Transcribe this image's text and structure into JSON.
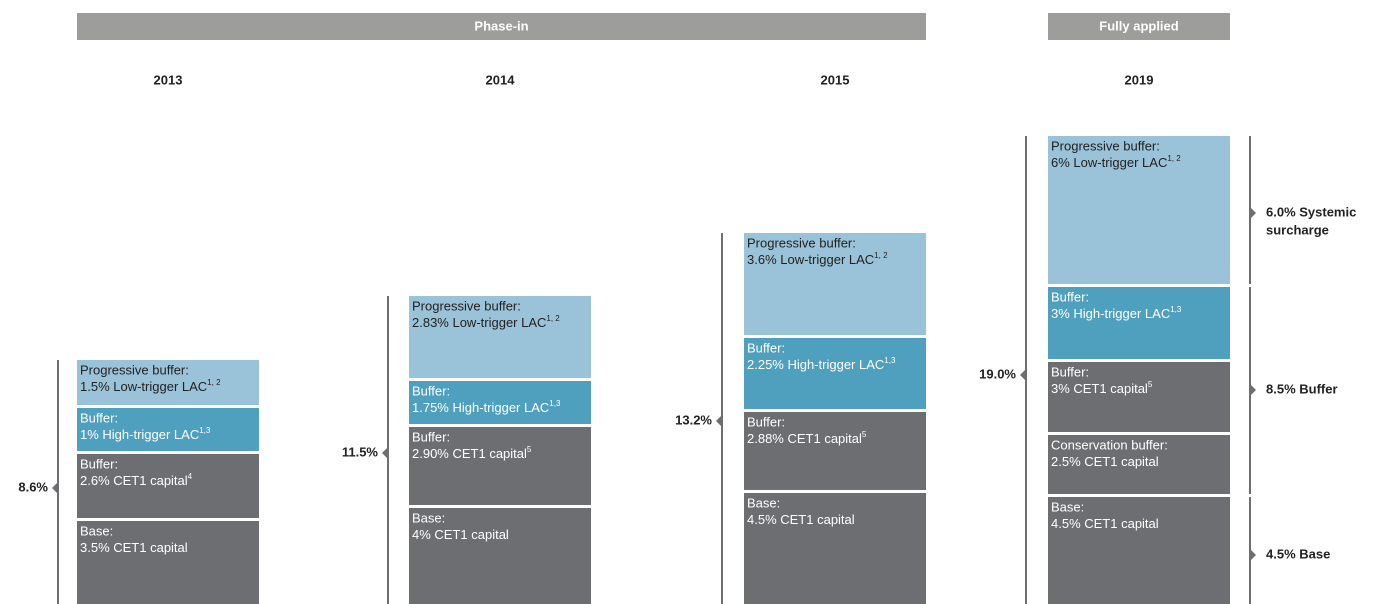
{
  "headers": [
    {
      "label": "Phase-in"
    },
    {
      "label": "Fully applied"
    }
  ],
  "columns": [
    {
      "year": "2013",
      "total": "8.6%",
      "blocks": [
        {
          "title": "Progressive buffer:",
          "text": "1.5% Low-trigger LAC",
          "note": "1, 2"
        },
        {
          "title": "Buffer:",
          "text": "1% High-trigger LAC",
          "note": "1,3"
        },
        {
          "title": "Buffer:",
          "text": "2.6% CET1 capital",
          "note": "4"
        },
        {
          "title": "Base:",
          "text": "3.5% CET1 capital"
        }
      ]
    },
    {
      "year": "2014",
      "total": "11.5%",
      "blocks": [
        {
          "title": "Progressive buffer:",
          "text": "2.83% Low-trigger LAC",
          "note": "1, 2"
        },
        {
          "title": "Buffer:",
          "text": "1.75% High-trigger LAC",
          "note": "1,3"
        },
        {
          "title": "Buffer:",
          "text": "2.90% CET1 capital",
          "note": "5"
        },
        {
          "title": "Base:",
          "text": "4% CET1 capital"
        }
      ]
    },
    {
      "year": "2015",
      "total": "13.2%",
      "blocks": [
        {
          "title": "Progressive buffer:",
          "text": "3.6% Low-trigger LAC",
          "note": "1, 2"
        },
        {
          "title": "Buffer:",
          "text": "2.25% High-trigger LAC",
          "note": "1,3"
        },
        {
          "title": "Buffer:",
          "text": "2.88% CET1 capital",
          "note": "5"
        },
        {
          "title": "Base:",
          "text": "4.5% CET1 capital"
        }
      ]
    },
    {
      "year": "2019",
      "total": "19.0%",
      "blocks": [
        {
          "title": "Progressive buffer:",
          "text": "6% Low-trigger LAC",
          "note": "1, 2"
        },
        {
          "title": "Buffer:",
          "text": "3% High-trigger LAC",
          "note": "1,3"
        },
        {
          "title": "Buffer:",
          "text": "3% CET1 capital",
          "note": "5"
        },
        {
          "title": "Conservation buffer:",
          "text": "2.5% CET1 capital"
        },
        {
          "title": "Base:",
          "text": "4.5% CET1 capital"
        }
      ]
    }
  ],
  "brackets": [
    {
      "lines": [
        "6.0% Systemic",
        "surcharge"
      ]
    },
    {
      "lines": [
        "8.5% Buffer"
      ]
    },
    {
      "lines": [
        "4.5% Base"
      ]
    }
  ]
}
